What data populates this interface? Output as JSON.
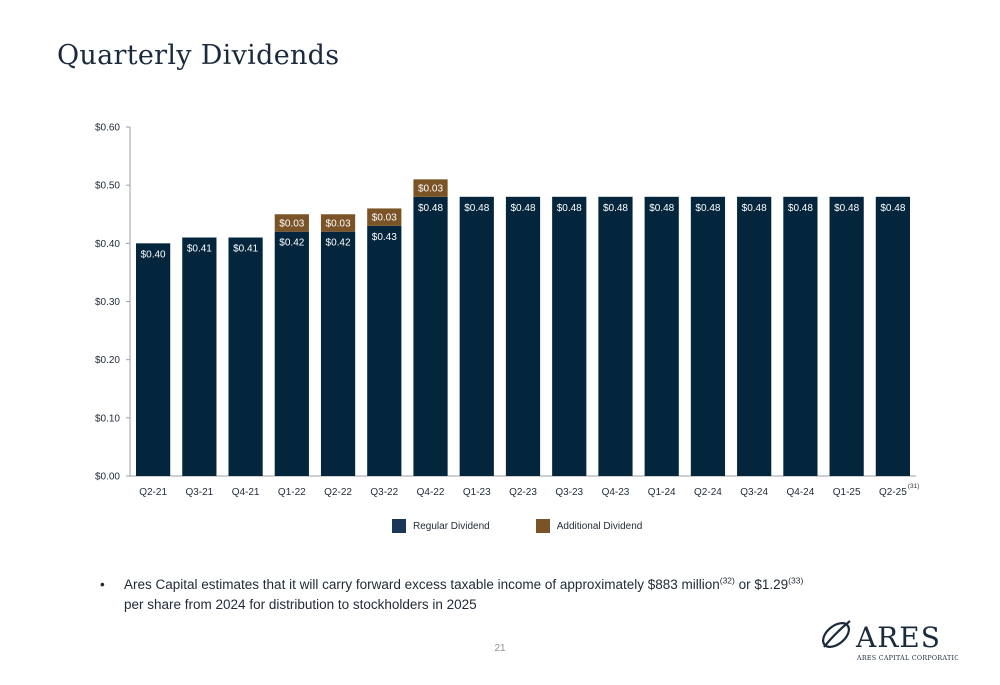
{
  "title": "Quarterly Dividends",
  "chart_data": {
    "type": "bar",
    "stacked": true,
    "categories": [
      "Q2-21",
      "Q3-21",
      "Q4-21",
      "Q1-22",
      "Q2-22",
      "Q3-22",
      "Q4-22",
      "Q1-23",
      "Q2-23",
      "Q3-23",
      "Q4-23",
      "Q1-24",
      "Q2-24",
      "Q3-24",
      "Q4-24",
      "Q1-25",
      "Q2-25"
    ],
    "series": [
      {
        "name": "Regular Dividend",
        "color": "#04263d",
        "values": [
          0.4,
          0.41,
          0.41,
          0.42,
          0.42,
          0.43,
          0.48,
          0.48,
          0.48,
          0.48,
          0.48,
          0.48,
          0.48,
          0.48,
          0.48,
          0.48,
          0.48
        ],
        "labels": [
          "$0.40",
          "$0.41",
          "$0.41",
          "$0.42",
          "$0.42",
          "$0.43",
          "$0.48",
          "$0.48",
          "$0.48",
          "$0.48",
          "$0.48",
          "$0.48",
          "$0.48",
          "$0.48",
          "$0.48",
          "$0.48",
          "$0.48"
        ]
      },
      {
        "name": "Additional Dividend",
        "color": "#7a5327",
        "values": [
          0,
          0,
          0,
          0.03,
          0.03,
          0.03,
          0.03,
          0,
          0,
          0,
          0,
          0,
          0,
          0,
          0,
          0,
          0
        ],
        "labels": [
          "",
          "",
          "",
          "$0.03",
          "$0.03",
          "$0.03",
          "$0.03",
          "",
          "",
          "",
          "",
          "",
          "",
          "",
          "",
          "",
          ""
        ]
      }
    ],
    "ylim": [
      0,
      0.6
    ],
    "yticks": [
      0,
      0.1,
      0.2,
      0.3,
      0.4,
      0.5,
      0.6
    ],
    "ytick_labels": [
      "$0.00",
      "$0.10",
      "$0.20",
      "$0.30",
      "$0.40",
      "$0.50",
      "$0.60"
    ],
    "last_category_footnote": "(31)",
    "legend_position": "bottom-center",
    "grid": false
  },
  "legend": [
    {
      "label": "Regular Dividend",
      "color": "#1d3557"
    },
    {
      "label": "Additional Dividend",
      "color": "#7a5327"
    }
  ],
  "bullet": {
    "dot": "•",
    "text1": "Ares Capital estimates that it will carry forward excess taxable income of approximately $883 million",
    "sup1": "(32)",
    "text2": " or $1.29",
    "sup2": "(33)",
    "text3": "per share from 2024 for distribution to stockholders in 2025"
  },
  "page_number": "21",
  "logo": {
    "wordmark": "ARES",
    "tagline": "ARES CAPITAL CORPORATION",
    "color": "#1b2a3c"
  }
}
